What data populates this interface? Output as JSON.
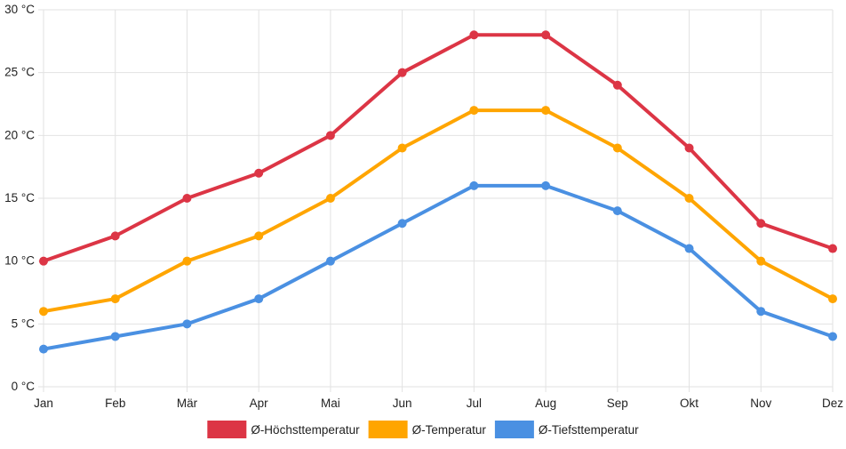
{
  "chart_data": {
    "type": "line",
    "categories": [
      "Jan",
      "Feb",
      "Mär",
      "Apr",
      "Mai",
      "Jun",
      "Jul",
      "Aug",
      "Sep",
      "Okt",
      "Nov",
      "Dez"
    ],
    "y_unit_suffix": " °C",
    "ylim": [
      0,
      30
    ],
    "yticks": [
      0,
      5,
      10,
      15,
      20,
      25,
      30
    ],
    "grid": true,
    "legend_position": "bottom-center",
    "series": [
      {
        "name": "Ø-Höchsttemperatur",
        "color": "#dc3545",
        "values": [
          10,
          12,
          15,
          17,
          20,
          25,
          28,
          28,
          24,
          19,
          13,
          11
        ]
      },
      {
        "name": "Ø-Temperatur",
        "color": "#ffa500",
        "values": [
          6,
          7,
          10,
          12,
          15,
          19,
          22,
          22,
          19,
          15,
          10,
          7
        ]
      },
      {
        "name": "Ø-Tiefsttemperatur",
        "color": "#4a90e2",
        "values": [
          3,
          4,
          5,
          7,
          10,
          13,
          16,
          16,
          14,
          11,
          6,
          4
        ]
      }
    ]
  }
}
